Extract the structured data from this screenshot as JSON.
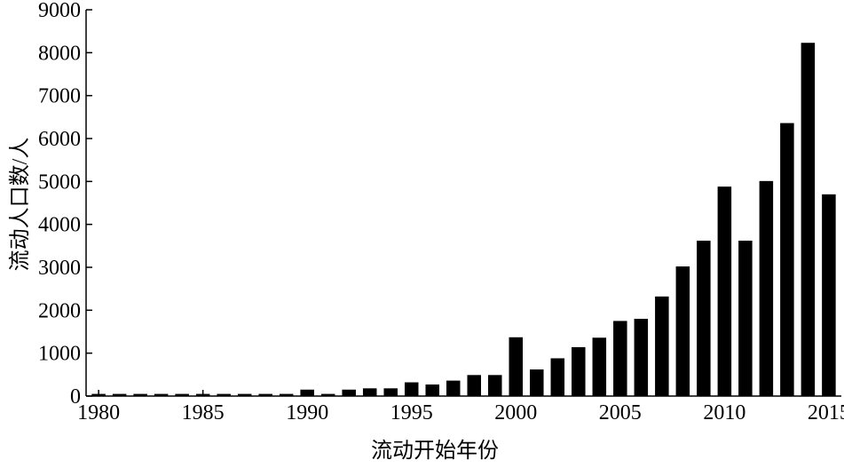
{
  "chart_data": {
    "type": "bar",
    "x_label": "流动开始年份",
    "y_label": "流动人口数/人",
    "x": [
      1980,
      1981,
      1982,
      1983,
      1984,
      1985,
      1986,
      1987,
      1988,
      1989,
      1990,
      1991,
      1992,
      1993,
      1994,
      1995,
      1996,
      1997,
      1998,
      1999,
      2000,
      2001,
      2002,
      2003,
      2004,
      2005,
      2006,
      2007,
      2008,
      2009,
      2010,
      2011,
      2012,
      2013,
      2014,
      2015
    ],
    "values": [
      50,
      50,
      50,
      50,
      50,
      50,
      50,
      50,
      50,
      50,
      150,
      50,
      150,
      180,
      180,
      320,
      270,
      360,
      490,
      490,
      1370,
      620,
      880,
      1140,
      1360,
      1750,
      1800,
      2320,
      3020,
      3620,
      4880,
      3620,
      5010,
      6360,
      8230,
      4700
    ],
    "color": "#000000",
    "xlim": [
      1979.4,
      2015.6
    ],
    "xticks": [
      1980,
      1985,
      1990,
      1995,
      2000,
      2005,
      2010,
      2015
    ],
    "ylim": [
      0,
      9000
    ],
    "yticks": [
      0,
      1000,
      2000,
      3000,
      4000,
      5000,
      6000,
      7000,
      8000,
      9000
    ]
  }
}
